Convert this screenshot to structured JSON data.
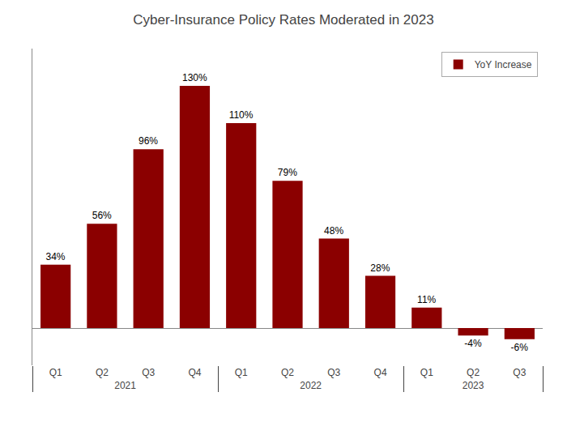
{
  "chart_data": {
    "type": "bar",
    "title": "Cyber-Insurance Policy Rates Moderated in 2023",
    "categories": [
      [
        "2021",
        "Q1"
      ],
      [
        "2021",
        "Q2"
      ],
      [
        "2021",
        "Q3"
      ],
      [
        "2021",
        "Q4"
      ],
      [
        "2022",
        "Q1"
      ],
      [
        "2022",
        "Q2"
      ],
      [
        "2022",
        "Q3"
      ],
      [
        "2022",
        "Q4"
      ],
      [
        "2023",
        "Q1"
      ],
      [
        "2023",
        "Q2"
      ],
      [
        "2023",
        "Q3"
      ]
    ],
    "series": [
      {
        "name": "YoY Increase",
        "color": "#8B0000",
        "values": [
          34,
          56,
          96,
          130,
          110,
          79,
          48,
          28,
          11,
          -4,
          -6
        ],
        "value_labels": [
          "34%",
          "56%",
          "96%",
          "130%",
          "110%",
          "79%",
          "48%",
          "28%",
          "11%",
          "-4%",
          "-6%"
        ]
      }
    ],
    "ylim": [
      -20,
      150
    ],
    "grid": false,
    "legend": "upper right",
    "data_labels": true,
    "tick_labels": "x"
  }
}
